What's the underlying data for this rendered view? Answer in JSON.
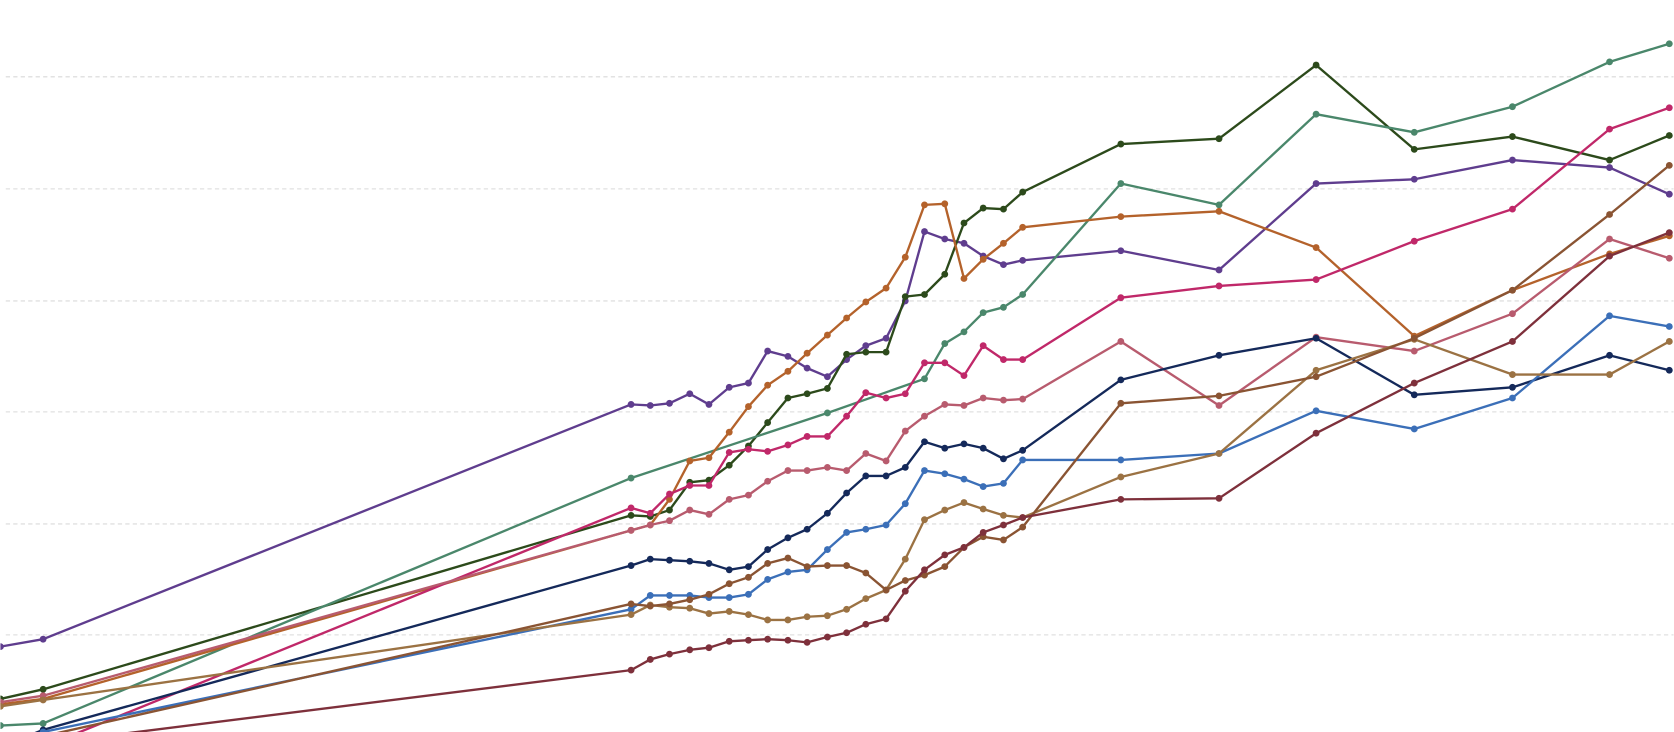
{
  "chart_data": {
    "type": "line",
    "xlim": [
      0,
      1568
    ],
    "ylim": [
      0,
      686
    ],
    "yticks": [
      91,
      195,
      300,
      404,
      509,
      614
    ],
    "grid": true,
    "x": [
      0,
      40,
      591,
      609,
      627,
      646,
      664,
      683,
      701,
      719,
      738,
      756,
      775,
      793,
      811,
      830,
      848,
      866,
      885,
      903,
      921,
      940,
      958,
      1050,
      1142,
      1233,
      1325,
      1417,
      1508,
      1564
    ],
    "series": [
      {
        "color": "#5f3d8e",
        "values": [
          80,
          87,
          307,
          306,
          308,
          317,
          307,
          323,
          327,
          357,
          352,
          341,
          333,
          349,
          362,
          369,
          404,
          469,
          462,
          458,
          446,
          438,
          442,
          451,
          433,
          514,
          518,
          536,
          529,
          504
        ]
      },
      {
        "color": "#2c4a1b",
        "values": [
          31,
          40,
          203,
          202,
          208,
          234,
          236,
          250,
          268,
          290,
          313,
          317,
          322,
          354,
          356,
          356,
          408,
          410,
          429,
          477,
          491,
          490,
          506,
          551,
          556,
          625,
          546,
          558,
          536,
          559
        ]
      },
      {
        "color": "#4a876b",
        "x": [
          0,
          40,
          591,
          775,
          866,
          885,
          903,
          921,
          940,
          958,
          1050,
          1142,
          1233,
          1325,
          1417,
          1508,
          1564
        ],
        "values": [
          6,
          8,
          238,
          299,
          331,
          364,
          375,
          393,
          398,
          410,
          514,
          494,
          579,
          562,
          586,
          628,
          645
        ]
      },
      {
        "color": "#b4622b",
        "values": [
          26,
          31,
          189,
          194,
          218,
          254,
          257,
          281,
          305,
          325,
          338,
          355,
          372,
          388,
          403,
          416,
          445,
          494,
          495,
          425,
          443,
          458,
          473,
          483,
          488,
          454,
          371,
          414,
          448,
          465
        ]
      },
      {
        "color": "#c02869",
        "values": [
          -29,
          -14,
          210,
          205,
          223,
          231,
          231,
          262,
          265,
          263,
          269,
          277,
          277,
          296,
          318,
          313,
          317,
          346,
          346,
          334,
          362,
          349,
          349,
          407,
          418,
          424,
          460,
          490,
          565,
          585
        ]
      },
      {
        "color": "#b85b6e",
        "values": [
          28,
          34,
          189,
          194,
          198,
          208,
          204,
          218,
          222,
          235,
          245,
          245,
          248,
          245,
          261,
          254,
          282,
          296,
          307,
          306,
          313,
          311,
          312,
          366,
          306,
          370,
          357,
          392,
          462,
          444
        ]
      },
      {
        "color": "#14295a",
        "values": [
          -14,
          2,
          156,
          162,
          161,
          160,
          158,
          152,
          155,
          171,
          182,
          190,
          205,
          224,
          240,
          240,
          248,
          272,
          266,
          270,
          266,
          256,
          264,
          330,
          353,
          369,
          316,
          323,
          353,
          339
        ]
      },
      {
        "color": "#3b6fb8",
        "values": [
          -12,
          0,
          115,
          128,
          128,
          128,
          126,
          126,
          129,
          143,
          150,
          152,
          171,
          187,
          190,
          194,
          214,
          245,
          242,
          237,
          230,
          233,
          255,
          255,
          261,
          301,
          284,
          313,
          390,
          380
        ]
      },
      {
        "color": "#9b7243",
        "values": [
          24,
          30,
          110,
          119,
          117,
          116,
          111,
          113,
          110,
          105,
          105,
          108,
          109,
          115,
          125,
          133,
          162,
          199,
          208,
          215,
          209,
          203,
          201,
          239,
          261,
          339,
          368,
          335,
          335,
          366
        ]
      },
      {
        "color": "#8a5433",
        "values": [
          -16,
          -4,
          120,
          118,
          120,
          124,
          129,
          139,
          145,
          158,
          163,
          155,
          156,
          156,
          149,
          133,
          142,
          147,
          155,
          173,
          183,
          180,
          192,
          308,
          315,
          333,
          369,
          414,
          485,
          531
        ]
      },
      {
        "color": "#7e303b",
        "values": [
          -19,
          -11,
          58,
          68,
          73,
          77,
          79,
          85,
          86,
          87,
          86,
          84,
          89,
          93,
          101,
          106,
          132,
          152,
          166,
          173,
          187,
          194,
          201,
          218,
          219,
          280,
          327,
          366,
          446,
          468
        ]
      }
    ]
  }
}
